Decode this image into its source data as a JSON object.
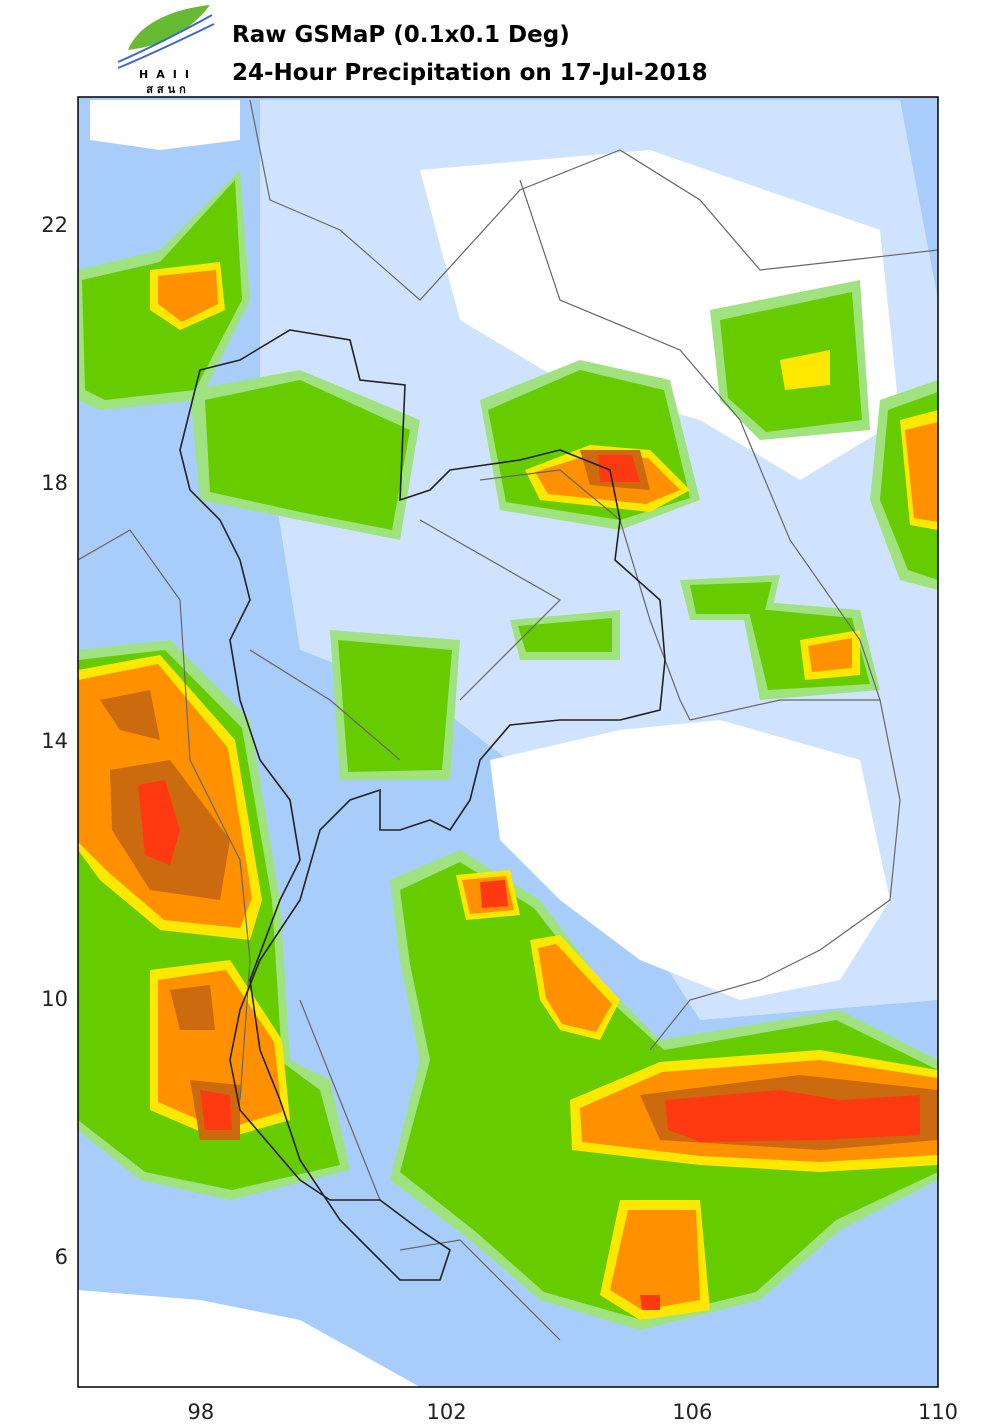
{
  "header": {
    "title": "Raw GSMaP (0.1x0.1 Deg)",
    "subtitle": "24-Hour Precipitation on 17-Jul-2018",
    "logo": {
      "name": "HAII",
      "thai": "สสนก"
    }
  },
  "map": {
    "xlim": [
      96,
      110
    ],
    "ylim": [
      4,
      24
    ],
    "xticks": [
      98,
      102,
      106,
      110
    ],
    "yticks": [
      22,
      18,
      14,
      10,
      6
    ]
  }
}
